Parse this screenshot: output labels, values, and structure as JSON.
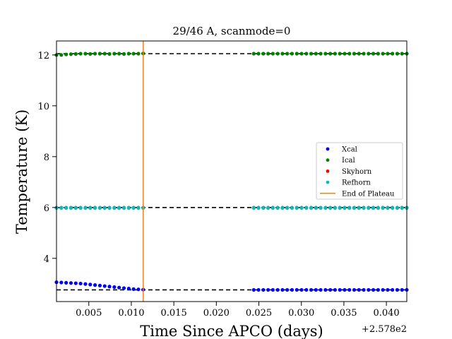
{
  "chart_data": {
    "type": "scatter",
    "title": "29/46 A, scanmode=0",
    "xlabel": "Time Since APCO (days)",
    "ylabel": "Temperature (K)",
    "x_offset_label": "+2.578e2",
    "xlim": [
      0.0012,
      0.0424
    ],
    "ylim": [
      2.3,
      12.55
    ],
    "xticks": [
      0.005,
      0.01,
      0.015,
      0.02,
      0.025,
      0.03,
      0.035,
      0.04
    ],
    "xtick_labels": [
      "0.005",
      "0.010",
      "0.015",
      "0.020",
      "0.025",
      "0.030",
      "0.035",
      "0.040"
    ],
    "yticks": [
      4,
      6,
      8,
      10,
      12
    ],
    "ytick_labels": [
      "4",
      "6",
      "8",
      "10",
      "12"
    ],
    "legend_position": "center-right",
    "grid": false,
    "segments": [
      {
        "x_start": 0.0012,
        "x_end": 0.0114,
        "n": 19
      },
      {
        "x_start": 0.0244,
        "x_end": 0.0424,
        "n": 33
      }
    ],
    "series": [
      {
        "name": "Xcal",
        "color": "#0000ff",
        "marker": "dot",
        "segment1": [
          3.06,
          3.05,
          3.04,
          3.03,
          3.02,
          3.01,
          2.99,
          2.97,
          2.95,
          2.93,
          2.91,
          2.89,
          2.87,
          2.85,
          2.83,
          2.81,
          2.79,
          2.78,
          2.77
        ],
        "segment2_level": 2.76
      },
      {
        "name": "Ical",
        "color": "#008000",
        "marker": "dot",
        "segment1": [
          12.0,
          12.0,
          12.02,
          12.03,
          12.04,
          12.05,
          12.05,
          12.04,
          12.05,
          12.05,
          12.05,
          12.04,
          12.05,
          12.05,
          12.04,
          12.05,
          12.05,
          12.05,
          12.06
        ],
        "segment2_level": 12.05
      },
      {
        "name": "Skyhorn",
        "color": "#ff0000",
        "marker": "dot",
        "level": 5.99
      },
      {
        "name": "Refhorn",
        "color": "#00bfbf",
        "marker": "dot",
        "level": 5.98
      },
      {
        "name": "End of Plateau",
        "color": "#ff7f0e",
        "marker": "line",
        "x": 0.0114
      }
    ],
    "reference_lines": [
      {
        "y": 12.05,
        "style": "dashed",
        "color": "#000000"
      },
      {
        "y": 6.0,
        "style": "dashed",
        "color": "#000000"
      },
      {
        "y": 2.76,
        "style": "dashed",
        "color": "#000000"
      }
    ]
  }
}
